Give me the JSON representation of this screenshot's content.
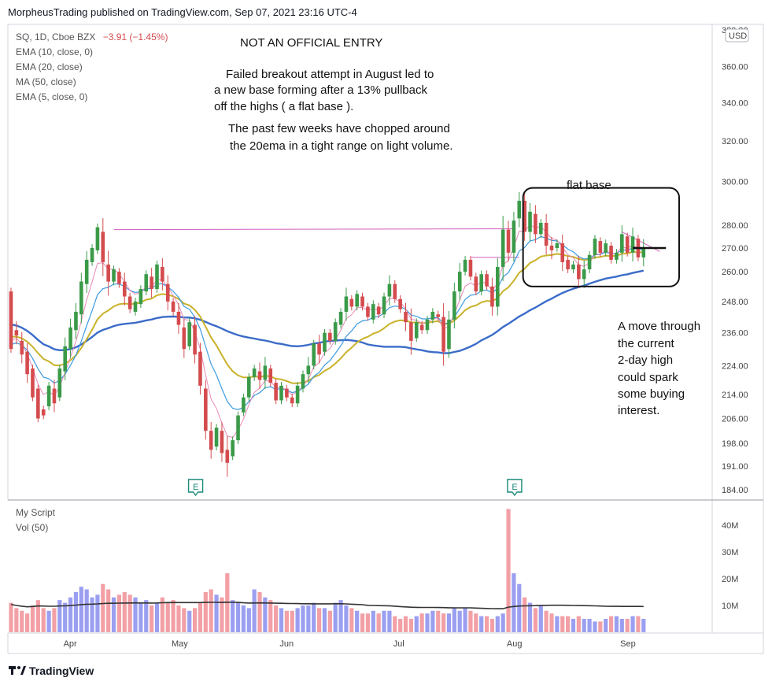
{
  "header": {
    "publisher": "MorpheusTrading published on TradingView.com, Sep 07, 2021 23:16 UTC-4"
  },
  "legend": {
    "symbol": "SQ, 1D, Cboe BZX",
    "change": "−3.91 (−1.45%)",
    "studies": [
      "EMA (10, close, 0)",
      "EMA (20, close)",
      "MA (50, close)",
      "EMA (5, close, 0)"
    ],
    "volume_panel": [
      "My Script",
      "Vol (50)"
    ],
    "currency": "USD",
    "earnings_marker": "E"
  },
  "footer": {
    "brand": "TradingView"
  },
  "annotations": {
    "heading": "NOT AN OFFICIAL ENTRY",
    "para1": [
      "Failed breakout attempt in August led to",
      "a new base forming after a 13% pullback",
      "off the highs ( a flat base )."
    ],
    "para2": [
      "The past few weeks have chopped around",
      "the 20ema in a tight range on light volume."
    ],
    "flat_base": "flat base",
    "para3": [
      "A move through",
      "the current",
      "2-day high",
      "could spark",
      "some buying",
      "interest."
    ]
  },
  "colors": {
    "up": "#3a9a48",
    "down": "#d44b4e",
    "ema10": "#3d9be0",
    "ema20": "#c9b22a",
    "ma50": "#3b6cc9",
    "ema5": "#e68ab8",
    "vol_up": "#9b9ff0",
    "vol_down": "#f2a0a6",
    "vol_ma": "#333333",
    "resistance": "#d25fc0",
    "earnings": "#1b8a78"
  },
  "chart_data": [
    {
      "type": "candlestick",
      "symbol": "SQ",
      "timeframe": "1D",
      "y_axis": {
        "scale": "log",
        "ticks": [
          184,
          191,
          198,
          206,
          214,
          224,
          236,
          248,
          260,
          270,
          280,
          300,
          320,
          340,
          360
        ],
        "range": [
          181,
          385
        ]
      },
      "x_axis": {
        "month_labels": [
          "Apr",
          "May",
          "Jun",
          "Jul",
          "Aug",
          "Sep"
        ]
      },
      "earnings_events": [
        "May",
        "Aug"
      ],
      "resistance_levels": [
        278,
        266
      ],
      "trigger_level": 270,
      "flat_base_box": {
        "price_top": 297,
        "price_bottom": 254
      },
      "ohlc_path": [
        [
          252,
          230,
          0
        ],
        [
          237,
          235,
          1
        ],
        [
          233,
          228,
          1
        ],
        [
          229,
          221,
          1
        ],
        [
          223,
          213,
          0
        ],
        [
          216,
          206,
          0
        ],
        [
          209,
          207,
          0
        ],
        [
          210,
          217,
          0
        ],
        [
          216,
          211,
          1
        ],
        [
          213,
          223,
          0
        ],
        [
          222,
          231,
          1
        ],
        [
          230,
          238,
          1
        ],
        [
          237,
          244,
          1
        ],
        [
          243,
          256,
          1
        ],
        [
          255,
          265,
          1
        ],
        [
          264,
          270,
          0
        ],
        [
          269,
          279,
          0
        ],
        [
          277,
          264,
          2
        ],
        [
          263,
          256,
          2
        ],
        [
          256,
          261,
          0
        ],
        [
          260,
          255,
          0
        ],
        [
          256,
          250,
          1
        ],
        [
          250,
          245,
          0
        ],
        [
          244,
          248,
          0
        ],
        [
          247,
          253,
          0
        ],
        [
          252,
          259,
          0
        ],
        [
          258,
          253,
          1
        ],
        [
          253,
          263,
          0
        ],
        [
          262,
          256,
          1
        ],
        [
          255,
          248,
          1
        ],
        [
          248,
          244,
          0
        ],
        [
          244,
          239,
          1
        ],
        [
          238,
          230,
          1
        ],
        [
          231,
          240,
          0
        ],
        [
          239,
          228,
          1
        ],
        [
          229,
          217,
          1
        ],
        [
          216,
          202,
          1
        ],
        [
          202,
          196,
          1
        ],
        [
          197,
          203,
          0
        ],
        [
          202,
          195,
          1
        ],
        [
          196,
          192,
          2
        ],
        [
          194,
          199,
          0
        ],
        [
          199,
          207,
          0
        ],
        [
          208,
          213,
          0
        ],
        [
          213,
          220,
          0
        ],
        [
          220,
          223,
          0
        ],
        [
          222,
          219,
          1
        ],
        [
          219,
          224,
          1
        ],
        [
          223,
          218,
          0
        ],
        [
          218,
          212,
          0
        ],
        [
          212,
          217,
          0
        ],
        [
          216,
          213,
          0
        ],
        [
          213,
          211,
          0
        ],
        [
          211,
          217,
          0
        ],
        [
          216,
          221,
          0
        ],
        [
          221,
          224,
          1
        ],
        [
          224,
          232,
          0
        ],
        [
          232,
          228,
          1
        ],
        [
          229,
          236,
          0
        ],
        [
          236,
          233,
          0
        ],
        [
          233,
          240,
          0
        ],
        [
          239,
          244,
          0
        ],
        [
          244,
          250,
          1
        ],
        [
          249,
          246,
          0
        ],
        [
          246,
          251,
          0
        ],
        [
          250,
          246,
          0
        ],
        [
          246,
          242,
          0
        ],
        [
          241,
          247,
          0
        ],
        [
          246,
          243,
          0
        ],
        [
          243,
          250,
          0
        ],
        [
          250,
          255,
          1
        ],
        [
          255,
          249,
          0
        ],
        [
          249,
          245,
          0
        ],
        [
          244,
          240,
          1
        ],
        [
          240,
          233,
          2
        ],
        [
          234,
          240,
          0
        ],
        [
          239,
          237,
          0
        ],
        [
          237,
          241,
          0
        ],
        [
          241,
          244,
          0
        ],
        [
          243,
          242,
          0
        ],
        [
          242,
          229,
          2
        ],
        [
          230,
          241,
          1
        ],
        [
          241,
          252,
          1
        ],
        [
          252,
          260,
          1
        ],
        [
          260,
          265,
          0
        ],
        [
          265,
          258,
          0
        ],
        [
          258,
          252,
          0
        ],
        [
          252,
          259,
          0
        ],
        [
          259,
          254,
          0
        ],
        [
          254,
          246,
          1
        ],
        [
          246,
          262,
          1
        ],
        [
          262,
          278,
          2
        ],
        [
          278,
          268,
          1
        ],
        [
          268,
          282,
          1
        ],
        [
          283,
          291,
          1
        ],
        [
          291,
          277,
          1
        ],
        [
          277,
          286,
          1
        ],
        [
          285,
          276,
          1
        ],
        [
          276,
          281,
          0
        ],
        [
          281,
          271,
          1
        ],
        [
          271,
          269,
          1
        ],
        [
          270,
          272,
          0
        ],
        [
          272,
          264,
          1
        ],
        [
          265,
          261,
          0
        ],
        [
          261,
          263,
          0
        ],
        [
          263,
          257,
          1
        ],
        [
          257,
          261,
          1
        ],
        [
          261,
          267,
          0
        ],
        [
          267,
          274,
          0
        ],
        [
          273,
          268,
          0
        ],
        [
          268,
          272,
          0
        ],
        [
          271,
          265,
          0
        ],
        [
          265,
          268,
          0
        ],
        [
          268,
          276,
          1
        ],
        [
          275,
          268,
          0
        ],
        [
          268,
          275,
          1
        ],
        [
          274,
          266,
          0
        ],
        [
          266,
          270,
          1
        ]
      ]
    },
    {
      "type": "bar",
      "title": "Vol (50)",
      "y_axis": {
        "ticks": [
          "10M",
          "20M",
          "30M",
          "40M"
        ],
        "range": [
          0,
          47
        ]
      },
      "note": "Volume in millions; one bar per session, color follows the candle direction; flat 50-period average line near 10M",
      "volume_m": [
        11,
        9,
        8,
        7,
        10,
        12,
        9,
        8,
        9,
        12,
        11,
        13,
        15,
        17,
        16,
        13,
        14,
        18,
        16,
        13,
        14,
        15,
        14,
        13,
        11,
        12,
        10,
        11,
        13,
        11,
        12,
        10,
        9,
        8,
        9,
        11,
        15,
        16,
        14,
        13,
        22,
        12,
        11,
        10,
        9,
        16,
        15,
        13,
        12,
        10,
        9,
        8,
        8,
        9,
        10,
        10,
        11,
        9,
        9,
        8,
        11,
        12,
        10,
        9,
        8,
        7,
        7,
        8,
        7,
        8,
        8,
        6,
        5,
        6,
        5,
        6,
        7,
        7,
        8,
        8,
        7,
        7,
        9,
        8,
        9,
        8,
        7,
        6,
        6,
        5,
        6,
        7,
        46,
        22,
        18,
        13,
        11,
        9,
        10,
        8,
        7,
        6,
        6,
        6,
        5,
        6,
        5,
        5,
        4,
        4,
        5,
        6,
        6,
        5,
        5,
        6,
        6,
        5
      ],
      "vol_ma_m": 10
    }
  ]
}
